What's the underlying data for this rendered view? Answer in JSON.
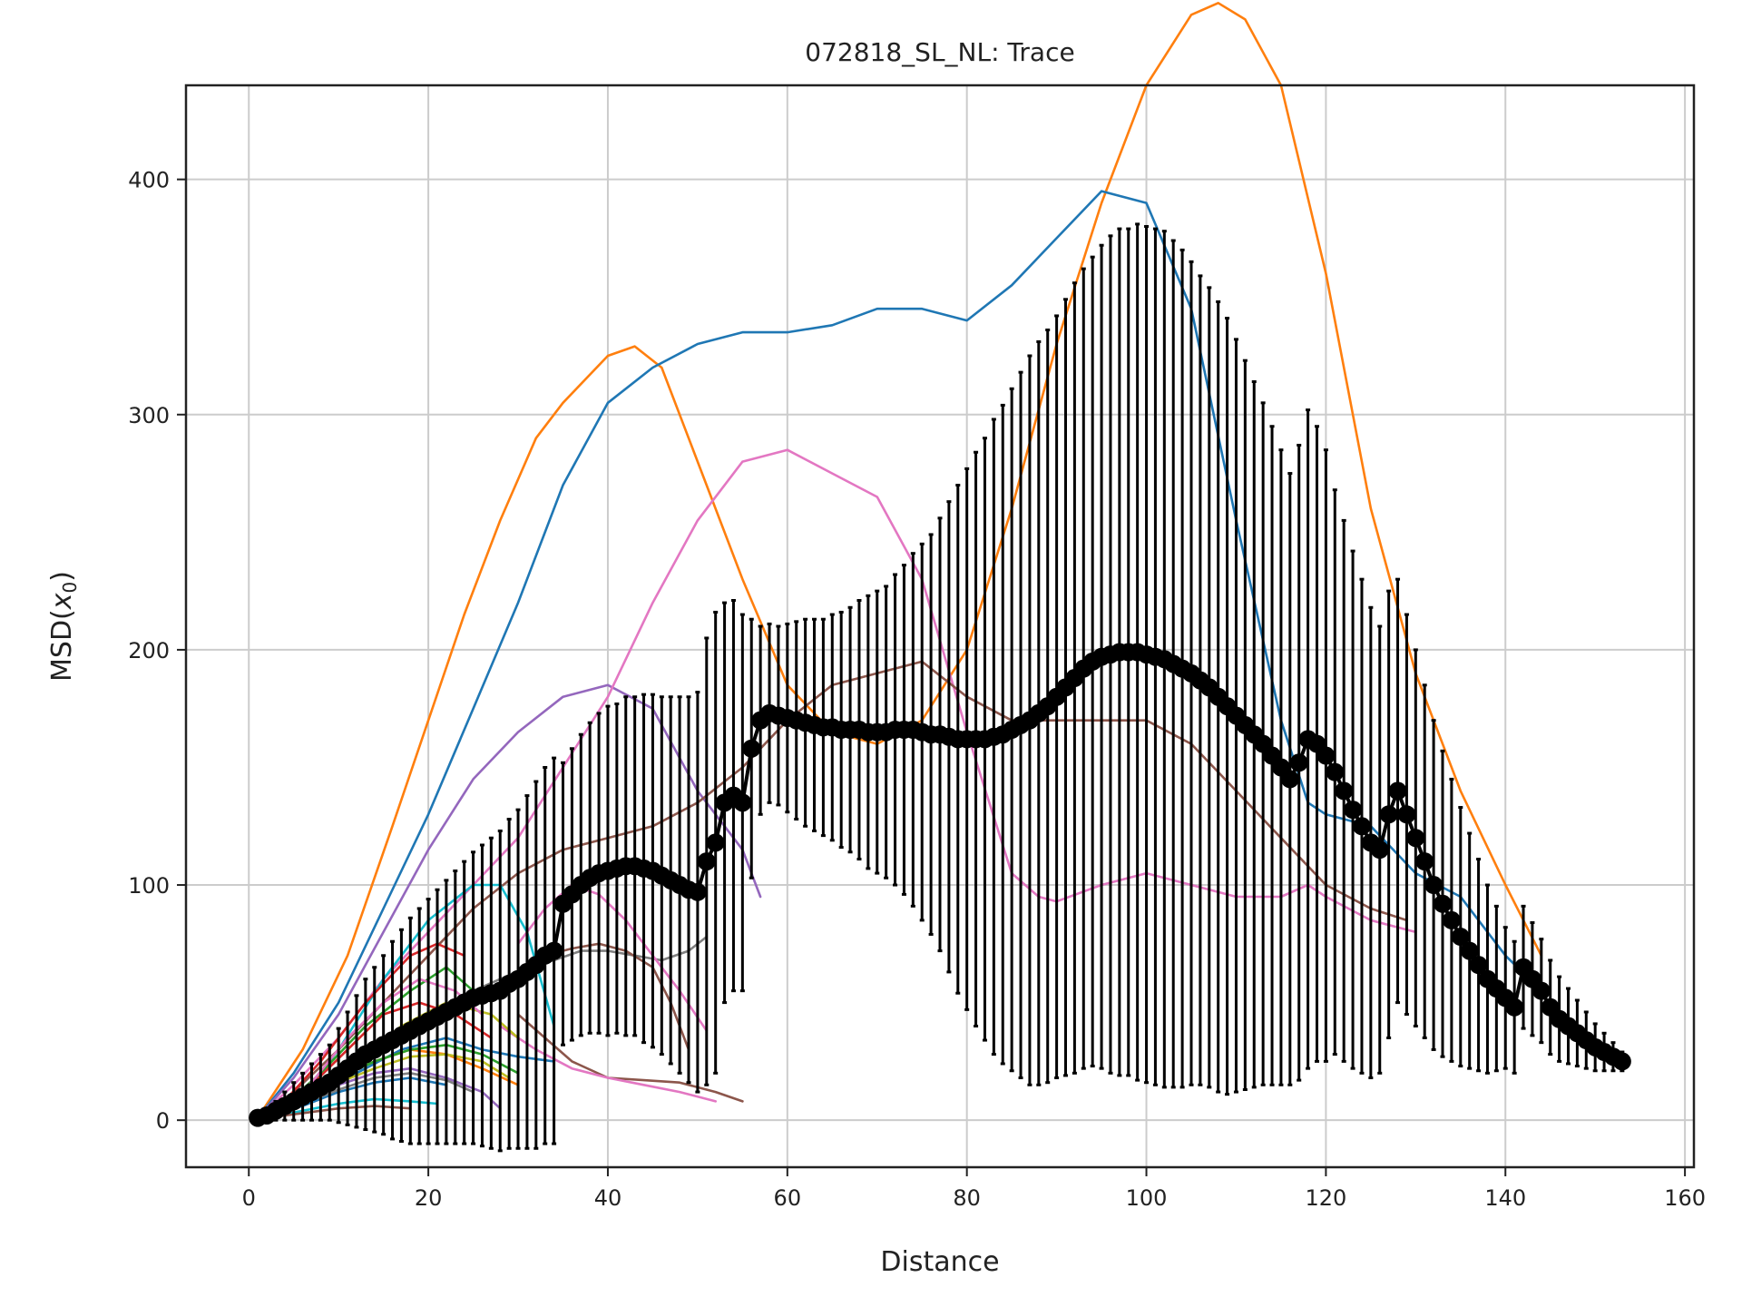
{
  "chart_data": {
    "type": "line",
    "title": "072818_SL_NL: Trace",
    "xlabel": "Distance",
    "ylabel_main": "MSD(",
    "ylabel_var": "x",
    "ylabel_sub": "0",
    "ylabel_close": ")",
    "xlim": [
      -7,
      161
    ],
    "ylim": [
      -20,
      440
    ],
    "xticks": [
      0,
      20,
      40,
      60,
      80,
      100,
      120,
      140,
      160
    ],
    "yticks": [
      0,
      100,
      200,
      300,
      400
    ],
    "xtick_labels": [
      "0",
      "20",
      "40",
      "60",
      "80",
      "100",
      "120",
      "140",
      "160"
    ],
    "ytick_labels": [
      "0",
      "100",
      "200",
      "300",
      "400"
    ],
    "grid": true,
    "colors": {
      "mean": "#000000",
      "grid": "#cccccc",
      "axes": "#222222",
      "palette": [
        "#1f77b4",
        "#ff7f0e",
        "#2ca02c",
        "#d62728",
        "#9467bd",
        "#8c564b",
        "#e377c2",
        "#7f7f7f",
        "#bcbd22",
        "#17becf"
      ]
    },
    "traces": [
      {
        "color": "#ff7f0e",
        "x": [
          1,
          6,
          11,
          16,
          20,
          24,
          28,
          32,
          35,
          40,
          43,
          46,
          50,
          55,
          60,
          65,
          70,
          75,
          80,
          85,
          90,
          95,
          100,
          105,
          108,
          111,
          115,
          120,
          125,
          130,
          135,
          140,
          144
        ],
        "y": [
          1,
          30,
          70,
          125,
          170,
          215,
          255,
          290,
          305,
          325,
          329,
          320,
          280,
          230,
          185,
          165,
          160,
          170,
          200,
          260,
          330,
          390,
          440,
          470,
          475,
          468,
          440,
          360,
          260,
          190,
          140,
          100,
          70
        ]
      },
      {
        "color": "#1f77b4",
        "x": [
          1,
          5,
          10,
          15,
          20,
          25,
          30,
          35,
          40,
          45,
          50,
          55,
          60,
          65,
          70,
          75,
          80,
          85,
          90,
          95,
          100,
          105,
          110,
          115,
          118,
          120,
          125,
          130,
          135,
          140,
          144
        ],
        "y": [
          1,
          20,
          50,
          90,
          130,
          175,
          220,
          270,
          305,
          320,
          330,
          335,
          335,
          338,
          345,
          345,
          340,
          355,
          375,
          395,
          390,
          345,
          255,
          170,
          135,
          130,
          125,
          105,
          95,
          70,
          55
        ]
      },
      {
        "color": "#9467bd",
        "x": [
          1,
          5,
          10,
          15,
          20,
          25,
          30,
          35,
          40,
          45,
          50,
          55,
          57
        ],
        "y": [
          1,
          18,
          45,
          80,
          115,
          145,
          165,
          180,
          185,
          175,
          140,
          115,
          95
        ]
      },
      {
        "color": "#e377c2",
        "x": [
          1,
          5,
          10,
          15,
          20,
          25,
          30,
          35,
          40,
          45,
          50,
          55,
          60,
          65,
          70,
          75,
          80,
          85,
          88,
          90,
          95,
          100,
          105,
          110,
          115,
          118,
          120,
          125,
          130
        ],
        "y": [
          1,
          15,
          35,
          60,
          80,
          100,
          120,
          150,
          180,
          220,
          255,
          280,
          285,
          275,
          265,
          230,
          165,
          105,
          95,
          93,
          100,
          105,
          100,
          95,
          95,
          100,
          95,
          85,
          80
        ]
      },
      {
        "color": "#8c564b",
        "x": [
          1,
          5,
          10,
          15,
          20,
          25,
          30,
          35,
          40,
          45,
          50,
          55,
          60,
          65,
          70,
          75,
          80,
          85,
          90,
          95,
          100,
          105,
          110,
          115,
          120,
          125,
          129
        ],
        "y": [
          1,
          12,
          30,
          50,
          70,
          90,
          105,
          115,
          120,
          125,
          135,
          150,
          170,
          185,
          190,
          195,
          180,
          170,
          170,
          170,
          170,
          160,
          140,
          120,
          100,
          90,
          85
        ]
      },
      {
        "color": "#7f7f7f",
        "x": [
          25,
          28,
          31,
          34,
          37,
          40,
          43,
          46,
          49,
          51
        ],
        "y": [
          55,
          60,
          65,
          68,
          72,
          72,
          70,
          68,
          72,
          78
        ]
      },
      {
        "color": "#e377c2",
        "x": [
          30,
          33,
          36,
          39,
          42,
          45,
          48,
          51
        ],
        "y": [
          75,
          90,
          100,
          96,
          85,
          70,
          55,
          38
        ]
      },
      {
        "color": "#8c564b",
        "x": [
          33,
          36,
          39,
          42,
          45,
          47,
          49
        ],
        "y": [
          70,
          73,
          75,
          72,
          65,
          50,
          30
        ]
      },
      {
        "color": "#8c564b",
        "x": [
          30,
          33,
          36,
          40,
          44,
          48,
          52,
          55
        ],
        "y": [
          45,
          35,
          25,
          18,
          17,
          16,
          12,
          8
        ]
      },
      {
        "color": "#e377c2",
        "x": [
          28,
          32,
          36,
          40,
          44,
          48,
          52
        ],
        "y": [
          40,
          30,
          22,
          18,
          15,
          12,
          8
        ]
      },
      {
        "color": "#17becf",
        "x": [
          5,
          10,
          15,
          20,
          25,
          28,
          31,
          34
        ],
        "y": [
          6,
          30,
          60,
          85,
          100,
          100,
          80,
          40
        ]
      },
      {
        "color": "#d62728",
        "x": [
          3,
          8,
          13,
          18,
          21,
          24
        ],
        "y": [
          4,
          25,
          50,
          70,
          75,
          70
        ]
      },
      {
        "color": "#2ca02c",
        "x": [
          3,
          8,
          13,
          18,
          22,
          25
        ],
        "y": [
          3,
          20,
          40,
          55,
          65,
          55
        ]
      },
      {
        "color": "#bcbd22",
        "x": [
          2,
          7,
          12,
          17,
          22,
          27,
          30
        ],
        "y": [
          2,
          12,
          25,
          40,
          50,
          45,
          35
        ]
      },
      {
        "color": "#1f77b4",
        "x": [
          2,
          7,
          12,
          17,
          22,
          26,
          30,
          34
        ],
        "y": [
          2,
          10,
          20,
          30,
          35,
          30,
          27,
          25
        ]
      },
      {
        "color": "#ff7f0e",
        "x": [
          2,
          6,
          10,
          14,
          18,
          22,
          26,
          30
        ],
        "y": [
          2,
          8,
          18,
          25,
          30,
          28,
          22,
          15
        ]
      },
      {
        "color": "#9467bd",
        "x": [
          2,
          6,
          10,
          14,
          18,
          22,
          26,
          28
        ],
        "y": [
          2,
          8,
          15,
          20,
          22,
          18,
          12,
          5
        ]
      },
      {
        "color": "#17becf",
        "x": [
          2,
          6,
          10,
          14,
          18,
          21
        ],
        "y": [
          1,
          4,
          7,
          9,
          8,
          7
        ]
      },
      {
        "color": "#8c564b",
        "x": [
          2,
          6,
          10,
          14,
          18
        ],
        "y": [
          1,
          3,
          5,
          6,
          5
        ]
      },
      {
        "color": "#2ca02c",
        "x": [
          2,
          6,
          10,
          14,
          18,
          22,
          26,
          30
        ],
        "y": [
          2,
          9,
          18,
          25,
          30,
          32,
          28,
          20
        ]
      },
      {
        "color": "#d62728",
        "x": [
          3,
          7,
          11,
          15,
          19,
          23,
          27
        ],
        "y": [
          3,
          15,
          30,
          45,
          50,
          45,
          35
        ]
      },
      {
        "color": "#e377c2",
        "x": [
          3,
          7,
          11,
          15,
          19,
          23,
          26
        ],
        "y": [
          3,
          16,
          35,
          50,
          60,
          55,
          45
        ]
      },
      {
        "color": "#bcbd22",
        "x": [
          2,
          6,
          10,
          14,
          18,
          22,
          26,
          29
        ],
        "y": [
          2,
          8,
          16,
          22,
          27,
          28,
          25,
          18
        ]
      },
      {
        "color": "#1f77b4",
        "x": [
          2,
          6,
          10,
          14,
          18,
          22
        ],
        "y": [
          2,
          6,
          12,
          16,
          18,
          15
        ]
      },
      {
        "color": "#7f7f7f",
        "x": [
          2,
          6,
          10,
          14,
          18,
          22,
          25
        ],
        "y": [
          2,
          7,
          13,
          18,
          20,
          17,
          12
        ]
      }
    ],
    "mean": {
      "x": [
        1,
        2,
        3,
        4,
        5,
        6,
        7,
        8,
        9,
        10,
        11,
        12,
        13,
        14,
        15,
        16,
        17,
        18,
        19,
        20,
        21,
        22,
        23,
        24,
        25,
        26,
        27,
        28,
        29,
        30,
        31,
        32,
        33,
        34,
        35,
        36,
        37,
        38,
        39,
        40,
        41,
        42,
        43,
        44,
        45,
        46,
        47,
        48,
        49,
        50,
        51,
        52,
        53,
        54,
        55,
        56,
        57,
        58,
        59,
        60,
        61,
        62,
        63,
        64,
        65,
        66,
        67,
        68,
        69,
        70,
        71,
        72,
        73,
        74,
        75,
        76,
        77,
        78,
        79,
        80,
        81,
        82,
        83,
        84,
        85,
        86,
        87,
        88,
        89,
        90,
        91,
        92,
        93,
        94,
        95,
        96,
        97,
        98,
        99,
        100,
        101,
        102,
        103,
        104,
        105,
        106,
        107,
        108,
        109,
        110,
        111,
        112,
        113,
        114,
        115,
        116,
        117,
        118,
        119,
        120,
        121,
        122,
        123,
        124,
        125,
        126,
        127,
        128,
        129,
        130,
        131,
        132,
        133,
        134,
        135,
        136,
        137,
        138,
        139,
        140,
        141,
        142,
        143,
        144,
        145,
        146,
        147,
        148,
        149,
        150,
        151,
        152,
        153
      ],
      "y": [
        1,
        2,
        4,
        6,
        8,
        10,
        12,
        14,
        16,
        19,
        22,
        25,
        28,
        30,
        32,
        34,
        36,
        38,
        40,
        42,
        44,
        46,
        48,
        50,
        52,
        53,
        54,
        55,
        58,
        60,
        63,
        66,
        70,
        72,
        92,
        96,
        100,
        103,
        105,
        106,
        107,
        108,
        108,
        107,
        106,
        104,
        102,
        100,
        98,
        97,
        110,
        118,
        135,
        138,
        135,
        158,
        170,
        173,
        172,
        171,
        170,
        169,
        168,
        167,
        167,
        166,
        166,
        166,
        165,
        165,
        165,
        166,
        166,
        166,
        165,
        164,
        164,
        163,
        162,
        162,
        162,
        162,
        163,
        164,
        166,
        168,
        170,
        173,
        176,
        180,
        184,
        188,
        192,
        195,
        197,
        198,
        199,
        199,
        199,
        198,
        197,
        196,
        194,
        192,
        190,
        187,
        184,
        180,
        176,
        172,
        168,
        164,
        160,
        155,
        150,
        145,
        152,
        162,
        160,
        155,
        148,
        140,
        132,
        125,
        118,
        115,
        130,
        140,
        130,
        120,
        110,
        100,
        92,
        85,
        78,
        72,
        66,
        60,
        56,
        52,
        48,
        65,
        60,
        55,
        48,
        43,
        40,
        37,
        34,
        31,
        29,
        27,
        25
      ],
      "err": [
        0,
        2,
        4,
        6,
        8,
        10,
        12,
        14,
        16,
        20,
        24,
        28,
        32,
        35,
        38,
        42,
        45,
        48,
        50,
        52,
        54,
        56,
        58,
        60,
        62,
        64,
        66,
        68,
        70,
        72,
        75,
        78,
        80,
        82,
        60,
        62,
        64,
        66,
        68,
        70,
        70,
        72,
        72,
        74,
        75,
        76,
        78,
        80,
        82,
        85,
        95,
        98,
        85,
        83,
        80,
        55,
        40,
        38,
        38,
        40,
        42,
        44,
        45,
        46,
        48,
        50,
        52,
        55,
        58,
        60,
        62,
        66,
        70,
        75,
        80,
        85,
        92,
        100,
        108,
        115,
        122,
        128,
        135,
        140,
        145,
        150,
        155,
        158,
        160,
        162,
        165,
        168,
        170,
        172,
        175,
        178,
        180,
        180,
        182,
        182,
        182,
        182,
        180,
        178,
        175,
        172,
        170,
        168,
        165,
        160,
        155,
        150,
        145,
        140,
        135,
        130,
        135,
        140,
        135,
        130,
        120,
        115,
        110,
        105,
        100,
        95,
        95,
        90,
        85,
        80,
        75,
        70,
        65,
        60,
        55,
        50,
        45,
        40,
        35,
        30,
        28,
        26,
        24,
        22,
        20,
        18,
        16,
        14,
        12,
        10,
        8,
        6,
        4
      ]
    }
  }
}
